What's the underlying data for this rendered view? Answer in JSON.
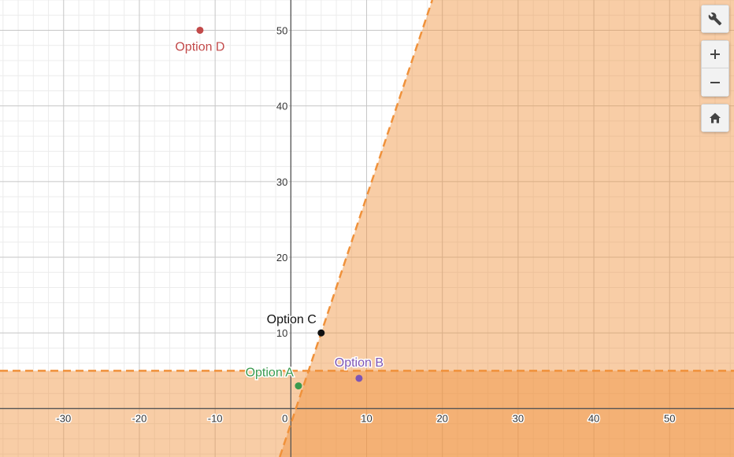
{
  "chart_data": {
    "type": "scatter",
    "title": "",
    "xlabel": "",
    "ylabel": "",
    "xlim": [
      -38.4,
      58.5
    ],
    "ylim": [
      -6.4,
      54
    ],
    "grid": true,
    "x_ticks": [
      -30,
      -20,
      -10,
      10,
      20,
      30,
      40,
      50
    ],
    "y_ticks": [
      10,
      20,
      30,
      40,
      50
    ],
    "tick_labels_x": [
      "-30",
      "-20",
      "-10",
      "10",
      "20",
      "30",
      "40",
      "50"
    ],
    "tick_labels_y": [
      "10",
      "20",
      "30",
      "40",
      "50"
    ],
    "origin_label": "0",
    "inequalities": [
      {
        "expression": "y < 3x - 2",
        "boundary_slope": 3,
        "boundary_intercept": -2,
        "style": "dashed",
        "shade": "below-right",
        "color": "#f0913a"
      },
      {
        "expression": "y < 5",
        "boundary_value": 5,
        "style": "dashed",
        "shade": "below",
        "color": "#f0913a"
      }
    ],
    "points": [
      {
        "label": "Option A",
        "x": 1,
        "y": 3,
        "color": "#3a9a4e"
      },
      {
        "label": "Option B",
        "x": 9,
        "y": 4,
        "color": "#7d55b5"
      },
      {
        "label": "Option C",
        "x": 4,
        "y": 10,
        "color": "#111111"
      },
      {
        "label": "Option D",
        "x": -12,
        "y": 50,
        "color": "#c24a4a"
      }
    ]
  },
  "toolbar": {
    "settings_icon": "wrench-icon",
    "zoom_in_icon": "plus-icon",
    "zoom_out_icon": "minus-icon",
    "home_icon": "home-icon"
  }
}
